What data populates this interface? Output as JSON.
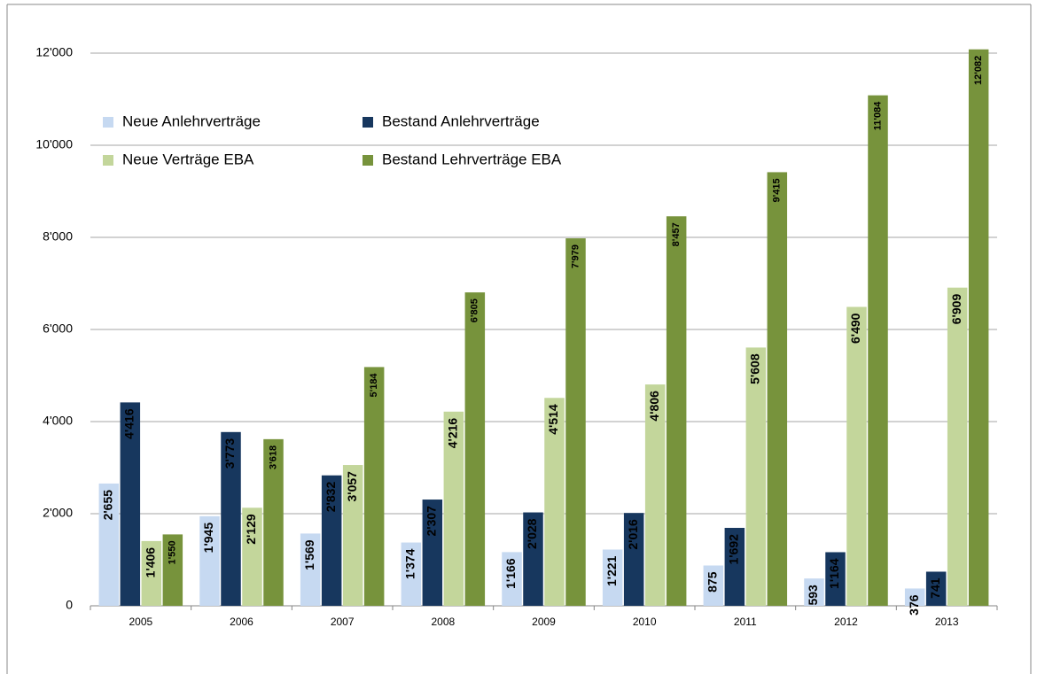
{
  "chart_data": {
    "type": "bar",
    "categories": [
      "2005",
      "2006",
      "2007",
      "2008",
      "2009",
      "2010",
      "2011",
      "2012",
      "2013"
    ],
    "series": [
      {
        "name": "Neue Anlehrverträge",
        "color": "#c6d9f1",
        "values": [
          2655,
          1945,
          1569,
          1374,
          1166,
          1221,
          875,
          593,
          376
        ],
        "value_labels": [
          "2'655",
          "1'945",
          "1'569",
          "1'374",
          "1'166",
          "1'221",
          "875",
          "593",
          "376"
        ]
      },
      {
        "name": "Bestand Anlehrverträge",
        "color": "#17375e",
        "values": [
          4416,
          3773,
          2832,
          2307,
          2028,
          2016,
          1692,
          1164,
          741
        ],
        "value_labels": [
          "4'416",
          "3'773",
          "2'832",
          "2'307",
          "2'028",
          "2'016",
          "1'692",
          "1'164",
          "741"
        ]
      },
      {
        "name": "Neue Verträge EBA",
        "color": "#c3d69b",
        "values": [
          1406,
          2129,
          3057,
          4216,
          4514,
          4806,
          5608,
          6490,
          6909
        ],
        "value_labels": [
          "1'406",
          "2'129",
          "3'057",
          "4'216",
          "4'514",
          "4'806",
          "5'608",
          "6'490",
          "6'909"
        ]
      },
      {
        "name": "Bestand Lehrverträge EBA",
        "color": "#77933c",
        "values": [
          1550,
          3618,
          5184,
          6805,
          7979,
          8457,
          9415,
          11084,
          12082
        ],
        "value_labels": [
          "1'550",
          "3'618",
          "5'184",
          "6'805",
          "7'979",
          "8'457",
          "9'415",
          "11'084",
          "12'082"
        ]
      }
    ],
    "ylim": [
      0,
      12000
    ],
    "yticks": [
      0,
      {
        "value": 2000,
        "label": "2'000"
      },
      {
        "value": 4000,
        "label": "4'000"
      },
      {
        "value": 6000,
        "label": "6'000"
      },
      {
        "value": 8000,
        "label": "8'000"
      },
      {
        "value": 10000,
        "label": "10'000"
      },
      {
        "value": 12000,
        "label": "12'000"
      }
    ],
    "grid": true,
    "legend": "top-left"
  }
}
